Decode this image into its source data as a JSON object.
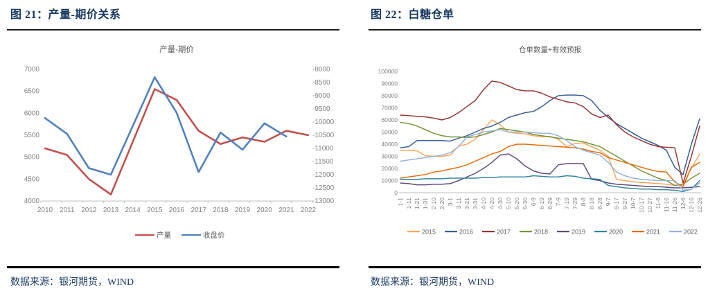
{
  "colors": {
    "title_navy": "#17375E",
    "rule_dark": "#1A1A1A",
    "rule_black": "#000000",
    "axis_text_gray": "#808080",
    "chart_title_gray": "#595959"
  },
  "panels": [
    {
      "title": "图 21：产量-期价关系",
      "source_label": "数据来源：银河期货，WIND"
    },
    {
      "title": "图 22：白糖仓单",
      "source_label": "数据来源：银河期货，WIND"
    }
  ],
  "chart_data": [
    {
      "type": "line",
      "title": "产量-期价",
      "legend_position": "bottom",
      "grid": false,
      "categories": [
        "2010",
        "2011",
        "2012",
        "2013",
        "2014",
        "2015",
        "2016",
        "2017",
        "2018",
        "2019",
        "2020",
        "2021",
        "2022"
      ],
      "left_axis": {
        "min": 4000,
        "max": 7000,
        "step": 500
      },
      "right_axis": {
        "min": -13000,
        "max": -8000,
        "step": 500
      },
      "series": [
        {
          "name": "产量",
          "color": "#C0504D",
          "axis": "left",
          "values": [
            5200,
            5050,
            4500,
            4150,
            5350,
            6550,
            6300,
            5600,
            5300,
            5450,
            5350,
            5600,
            5500
          ]
        },
        {
          "name": "收盘价",
          "color": "#4F81BD",
          "axis": "right",
          "values": [
            -9850,
            -10450,
            -11750,
            -12000,
            -10150,
            -8300,
            -9650,
            -11900,
            -10400,
            -11050,
            -10050,
            -10550,
            null
          ]
        }
      ]
    },
    {
      "type": "line",
      "title": "仓单数量+有效预报",
      "legend_position": "bottom",
      "grid": false,
      "categories": [
        "1-1",
        "1-11",
        "1-21",
        "1-31",
        "2-10",
        "2-20",
        "3-1",
        "3-11",
        "3-21",
        "3-31",
        "4-10",
        "4-20",
        "4-30",
        "5-10",
        "5-20",
        "5-30",
        "6-9",
        "6-19",
        "6-29",
        "7-9",
        "7-19",
        "7-29",
        "8-8",
        "8-18",
        "8-28",
        "9-7",
        "9-17",
        "9-27",
        "10-7",
        "10-17",
        "10-27",
        "11-6",
        "11-16",
        "11-26",
        "12-6",
        "12-16",
        "12-26"
      ],
      "left_axis": {
        "min": 0,
        "max": 100000,
        "step": 10000
      },
      "series": [
        {
          "name": "2015",
          "color": "#FAA75B",
          "axis": "left",
          "values": [
            35000,
            35000,
            34500,
            30500,
            30000,
            30000,
            31000,
            38500,
            40000,
            44000,
            52000,
            60000,
            56000,
            50000,
            49000,
            48500,
            47000,
            46000,
            46500,
            44000,
            38000,
            40500,
            41000,
            38000,
            35000,
            30000,
            11000,
            10000,
            9000,
            8500,
            8000,
            7500,
            7000,
            6000,
            7000,
            20000,
            32000
          ]
        },
        {
          "name": "2016",
          "color": "#375F91",
          "axis": "left",
          "values": [
            37000,
            38000,
            43000,
            43000,
            43000,
            43000,
            42500,
            45000,
            47000,
            50000,
            53000,
            55000,
            58000,
            62000,
            64000,
            66000,
            67000,
            71000,
            76000,
            80000,
            80500,
            80500,
            80000,
            76000,
            68000,
            62000,
            57000,
            53000,
            49000,
            45000,
            42000,
            39000,
            35000,
            21000,
            15000,
            40000,
            61000
          ]
        },
        {
          "name": "2017",
          "color": "#953735",
          "axis": "left",
          "values": [
            64000,
            63500,
            63000,
            62500,
            61500,
            60000,
            62000,
            66000,
            71000,
            76000,
            85000,
            92000,
            91000,
            88000,
            85000,
            84000,
            84000,
            82000,
            79000,
            77000,
            75000,
            74000,
            71000,
            65000,
            62000,
            64000,
            56000,
            50000,
            46000,
            43000,
            40000,
            38000,
            37500,
            37000,
            8000,
            30000,
            55000
          ]
        },
        {
          "name": "2018",
          "color": "#77933C",
          "axis": "left",
          "values": [
            58000,
            57000,
            55000,
            52000,
            49000,
            47000,
            46000,
            46000,
            45500,
            46000,
            48000,
            50000,
            53000,
            52000,
            51000,
            50000,
            48000,
            47000,
            46000,
            45000,
            44000,
            43000,
            42000,
            40000,
            38000,
            34000,
            30000,
            26000,
            22000,
            18000,
            15000,
            12000,
            10000,
            6000,
            7000,
            12000,
            16000
          ]
        },
        {
          "name": "2019",
          "color": "#604A7B",
          "axis": "left",
          "values": [
            8000,
            7500,
            6500,
            6500,
            7000,
            7000,
            7500,
            10000,
            13000,
            16000,
            20000,
            25000,
            31000,
            32000,
            28000,
            22000,
            18000,
            16000,
            15500,
            23000,
            24000,
            24000,
            24000,
            11000,
            10000,
            8000,
            7000,
            6500,
            6000,
            5500,
            5000,
            5000,
            4500,
            4000,
            4000,
            4500,
            5000
          ]
        },
        {
          "name": "2020",
          "color": "#31859C",
          "axis": "left",
          "values": [
            11000,
            11000,
            11000,
            11500,
            11500,
            11500,
            12000,
            12000,
            12000,
            12000,
            12500,
            12500,
            13000,
            13000,
            13000,
            13000,
            14000,
            13500,
            13000,
            13000,
            14000,
            13500,
            12000,
            11500,
            11000,
            6000,
            5000,
            4000,
            3500,
            3000,
            3000,
            2500,
            2500,
            2000,
            1000,
            3000,
            10000
          ]
        },
        {
          "name": "2021",
          "color": "#E36C0A",
          "axis": "left",
          "values": [
            12000,
            13000,
            14000,
            15000,
            17000,
            18000,
            19500,
            21000,
            23000,
            26000,
            29000,
            32000,
            34000,
            38000,
            40000,
            40000,
            39500,
            39000,
            38500,
            38000,
            37500,
            37000,
            36000,
            34000,
            33000,
            29000,
            27000,
            25000,
            23000,
            21000,
            19000,
            17500,
            17000,
            9000,
            5000,
            21000,
            25000
          ]
        },
        {
          "name": "2022",
          "color": "#95B3D7",
          "axis": "left",
          "values": [
            26000,
            27000,
            28000,
            29000,
            30000,
            31000,
            33000,
            38000,
            46000,
            48000,
            50000,
            51000,
            52000,
            50000,
            50000,
            50000,
            49500,
            49000,
            49000,
            47000,
            43000,
            38000,
            35000,
            33000,
            31000,
            25000,
            17000,
            14000,
            12000,
            11000,
            10500,
            10000,
            10000,
            10000,
            2000,
            3000,
            8000
          ]
        }
      ]
    }
  ]
}
